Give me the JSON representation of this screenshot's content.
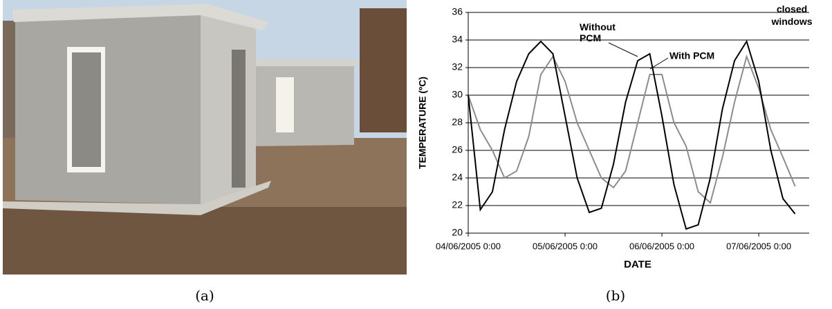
{
  "captions": [
    "(a)",
    "(b)"
  ],
  "chart_data": {
    "type": "line",
    "xlabel": "DATE",
    "ylabel": "TEMPERATURE (ºC)",
    "annotations": [
      "closed windows"
    ],
    "x": [
      "04/06/2005 0:00",
      "04/06/2005 3:00",
      "04/06/2005 6:00",
      "04/06/2005 9:00",
      "04/06/2005 12:00",
      "04/06/2005 15:00",
      "04/06/2005 18:00",
      "04/06/2005 21:00",
      "05/06/2005 0:00",
      "05/06/2005 3:00",
      "05/06/2005 6:00",
      "05/06/2005 9:00",
      "05/06/2005 12:00",
      "05/06/2005 15:00",
      "05/06/2005 18:00",
      "05/06/2005 21:00",
      "06/06/2005 0:00",
      "06/06/2005 3:00",
      "06/06/2005 6:00",
      "06/06/2005 9:00",
      "06/06/2005 12:00",
      "06/06/2005 15:00",
      "06/06/2005 18:00",
      "06/06/2005 21:00",
      "07/06/2005 0:00",
      "07/06/2005 3:00",
      "07/06/2005 6:00",
      "07/06/2005 9:00"
    ],
    "series": [
      {
        "name": "Without PCM",
        "color": "#000000",
        "values": [
          30,
          21.7,
          23,
          27.5,
          31,
          33,
          33.9,
          33,
          28.5,
          24,
          21.5,
          21.8,
          25,
          29.5,
          32.5,
          33,
          28.5,
          23.5,
          20.3,
          20.6,
          24,
          29,
          32.5,
          33.9,
          31,
          26,
          22.5,
          21.4
        ]
      },
      {
        "name": "With PCM",
        "color": "#8c8c8c",
        "values": [
          30,
          27.5,
          26,
          24,
          24.5,
          27,
          31.5,
          32.8,
          31,
          28,
          26,
          24,
          23.3,
          24.5,
          28,
          31.5,
          31.5,
          28,
          26.3,
          23,
          22.2,
          25.5,
          29.5,
          32.8,
          30.5,
          27.5,
          25.5,
          23.4
        ]
      }
    ],
    "xlim": [
      "04/06/2005 0:00",
      "07/06/2005 12:30"
    ],
    "xticks": [
      "04/06/2005 0:00",
      "05/06/2005 0:00",
      "06/06/2005 0:00",
      "07/06/2005 0:00"
    ],
    "ylim": [
      20,
      36
    ],
    "yticks": [
      20,
      22,
      24,
      26,
      28,
      30,
      32,
      34,
      36
    ],
    "grid": true
  }
}
